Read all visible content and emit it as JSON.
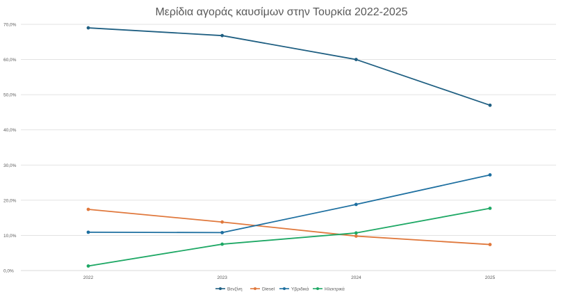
{
  "chart_data": {
    "type": "line",
    "title": "Μερίδια αγοράς καυσίμων στην Τουρκία 2022-2025",
    "xlabel": "",
    "ylabel": "",
    "categories": [
      "2022",
      "2023",
      "2024",
      "2025"
    ],
    "y_ticks": [
      "0,0%",
      "10,0%",
      "20,0%",
      "30,0%",
      "40,0%",
      "50,0%",
      "60,0%",
      "70,0%"
    ],
    "ylim": [
      0,
      70
    ],
    "grid": true,
    "legend_position": "bottom",
    "series": [
      {
        "name": "Βενζίνη",
        "color": "#1f5f82",
        "values": [
          69.0,
          66.8,
          60.0,
          47.0
        ]
      },
      {
        "name": "Diesel",
        "color": "#e0783c",
        "values": [
          17.4,
          13.8,
          9.8,
          7.4
        ]
      },
      {
        "name": "Υβριδικά",
        "color": "#1d6fa0",
        "values": [
          10.9,
          10.8,
          18.8,
          27.2
        ]
      },
      {
        "name": "Ηλεκτρικά",
        "color": "#1ea865",
        "values": [
          1.3,
          7.5,
          10.7,
          17.7
        ]
      }
    ]
  }
}
